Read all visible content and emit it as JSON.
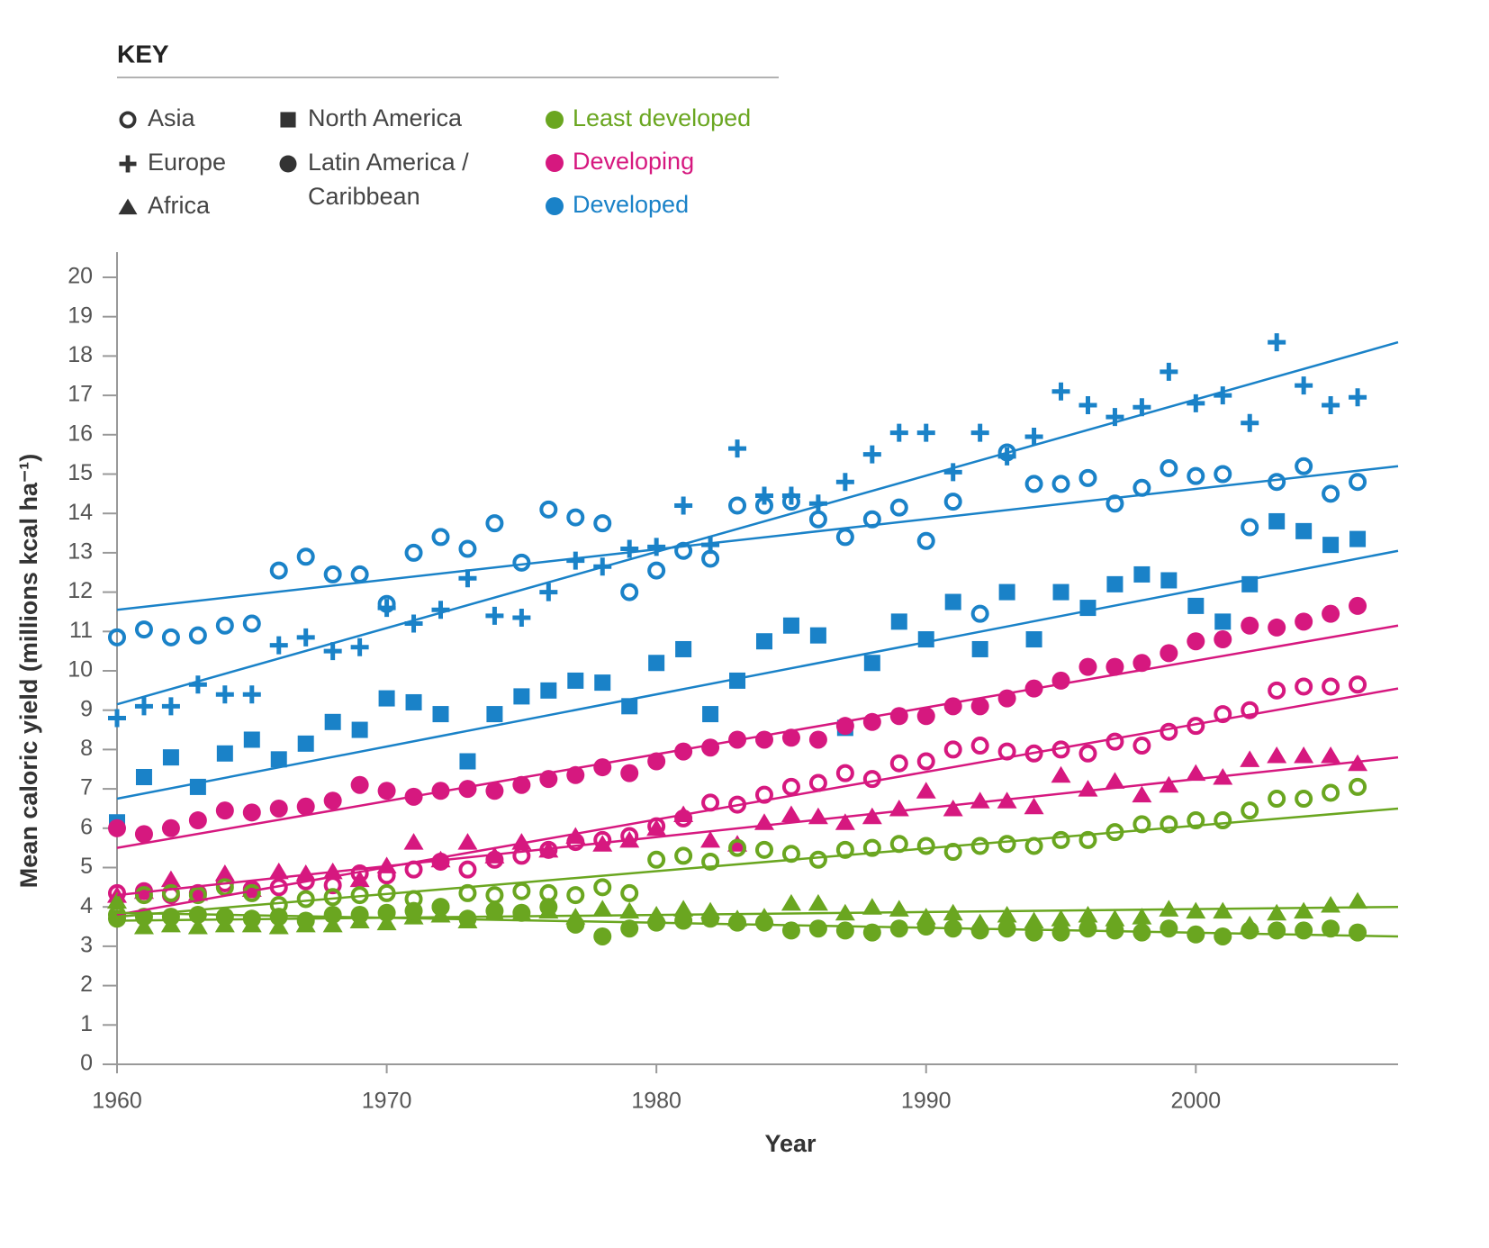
{
  "chart_data": {
    "type": "scatter",
    "legend_title": "KEY",
    "legend": {
      "shapes": [
        {
          "label": [
            "Asia"
          ],
          "marker": "circle-open"
        },
        {
          "label": [
            "Europe"
          ],
          "marker": "plus"
        },
        {
          "label": [
            "Africa"
          ],
          "marker": "triangle"
        },
        {
          "label": [
            "North America"
          ],
          "marker": "square"
        },
        {
          "label": [
            "Latin America /",
            "Caribbean"
          ],
          "marker": "circle"
        }
      ],
      "groups": [
        {
          "label": "Least developed",
          "color": "#6aa620"
        },
        {
          "label": "Developing",
          "color": "#d6187f"
        },
        {
          "label": "Developed",
          "color": "#1a82c8"
        }
      ]
    },
    "xlabel": "Year",
    "ylabel": "Mean caloric yield (millions kcal ha⁻¹)",
    "xlim": [
      1960,
      2007.5
    ],
    "ylim": [
      0,
      20
    ],
    "xticks": [
      1960,
      1970,
      1980,
      1990,
      2000
    ],
    "yticks": [
      0,
      1,
      2,
      3,
      4,
      5,
      6,
      7,
      8,
      9,
      10,
      11,
      12,
      13,
      14,
      15,
      16,
      17,
      18,
      19,
      20
    ],
    "x": [
      1960,
      1961,
      1962,
      1963,
      1964,
      1965,
      1966,
      1967,
      1968,
      1969,
      1970,
      1971,
      1972,
      1973,
      1974,
      1975,
      1976,
      1977,
      1978,
      1979,
      1980,
      1981,
      1982,
      1983,
      1984,
      1985,
      1986,
      1987,
      1988,
      1989,
      1990,
      1991,
      1992,
      1993,
      1994,
      1995,
      1996,
      1997,
      1998,
      1999,
      2000,
      2001,
      2002,
      2003,
      2004,
      2005,
      2006
    ],
    "trend_x": [
      1960,
      2007.5
    ],
    "series": [
      {
        "marker": "circle-open",
        "color": "#1a82c8",
        "trend": [
          11.55,
          15.2
        ],
        "values": [
          10.85,
          11.05,
          10.85,
          10.9,
          11.15,
          11.2,
          12.55,
          12.9,
          12.45,
          12.45,
          11.7,
          13.0,
          13.4,
          13.1,
          13.75,
          12.75,
          14.1,
          13.9,
          13.75,
          12.0,
          12.55,
          13.05,
          12.85,
          14.2,
          14.2,
          14.3,
          13.85,
          13.4,
          13.85,
          14.15,
          13.3,
          14.3,
          11.45,
          15.55,
          14.75,
          14.75,
          14.9,
          14.25,
          14.65,
          15.15,
          14.95,
          15.0,
          13.65,
          14.8,
          15.2,
          14.5,
          14.8
        ]
      },
      {
        "marker": "plus",
        "color": "#1a82c8",
        "trend": [
          9.15,
          18.35
        ],
        "values": [
          8.8,
          9.1,
          9.1,
          9.65,
          9.4,
          9.4,
          10.65,
          10.85,
          10.5,
          10.6,
          11.6,
          11.2,
          11.55,
          12.35,
          11.4,
          11.35,
          12.0,
          12.8,
          12.65,
          13.1,
          13.15,
          14.2,
          13.2,
          15.65,
          14.45,
          14.45,
          14.25,
          14.8,
          15.5,
          16.05,
          16.05,
          15.05,
          16.05,
          15.45,
          15.95,
          17.1,
          16.75,
          16.45,
          16.7,
          17.6,
          16.8,
          17.0,
          16.3,
          18.35,
          17.25,
          16.75,
          16.95
        ]
      },
      {
        "marker": "square",
        "color": "#1a82c8",
        "trend": [
          6.75,
          13.05
        ],
        "values": [
          6.15,
          7.3,
          7.8,
          7.05,
          7.9,
          8.25,
          7.75,
          8.15,
          8.7,
          8.5,
          9.3,
          9.2,
          8.9,
          7.7,
          8.9,
          9.35,
          9.5,
          9.75,
          9.7,
          9.1,
          10.2,
          10.55,
          8.9,
          9.75,
          10.75,
          11.15,
          10.9,
          8.55,
          10.2,
          11.25,
          10.8,
          11.75,
          10.55,
          12.0,
          10.8,
          12.0,
          11.6,
          12.2,
          12.45,
          12.3,
          11.65,
          11.25,
          12.2,
          13.8,
          13.55,
          13.2,
          13.35
        ]
      },
      {
        "marker": "circle",
        "color": "#d6187f",
        "trend": [
          5.5,
          11.15
        ],
        "values": [
          6.0,
          5.85,
          6.0,
          6.2,
          6.45,
          6.4,
          6.5,
          6.55,
          6.7,
          7.1,
          6.95,
          6.8,
          6.95,
          7.0,
          6.95,
          7.1,
          7.25,
          7.35,
          7.55,
          7.4,
          7.7,
          7.95,
          8.05,
          8.25,
          8.25,
          8.3,
          8.25,
          8.6,
          8.7,
          8.85,
          8.85,
          9.1,
          9.1,
          9.3,
          9.55,
          9.75,
          10.1,
          10.1,
          10.2,
          10.45,
          10.75,
          10.8,
          11.15,
          11.1,
          11.25,
          11.45,
          11.65
        ]
      },
      {
        "marker": "circle-open",
        "color": "#d6187f",
        "trend": [
          3.8,
          9.55
        ],
        "values": [
          4.35,
          4.4,
          4.3,
          4.35,
          4.6,
          4.45,
          4.5,
          4.65,
          4.55,
          4.85,
          4.8,
          4.95,
          5.15,
          4.95,
          5.2,
          5.3,
          5.45,
          5.65,
          5.7,
          5.8,
          6.05,
          6.25,
          6.65,
          6.6,
          6.85,
          7.05,
          7.15,
          7.4,
          7.25,
          7.65,
          7.7,
          8.0,
          8.1,
          7.95,
          7.9,
          8.0,
          7.9,
          8.2,
          8.1,
          8.45,
          8.6,
          8.9,
          9.0,
          9.5,
          9.6,
          9.6,
          9.65
        ]
      },
      {
        "marker": "triangle",
        "color": "#d6187f",
        "trend": [
          4.3,
          7.8
        ],
        "values": [
          4.3,
          4.4,
          4.7,
          4.35,
          4.85,
          4.45,
          4.9,
          4.85,
          4.9,
          4.7,
          5.05,
          5.65,
          5.2,
          5.65,
          5.3,
          5.65,
          5.45,
          5.8,
          5.6,
          5.7,
          6.0,
          6.35,
          5.7,
          5.6,
          6.15,
          6.35,
          6.3,
          6.15,
          6.3,
          6.5,
          6.95,
          6.5,
          6.7,
          6.7,
          6.55,
          7.35,
          7.0,
          7.2,
          6.85,
          7.1,
          7.4,
          7.3,
          7.75,
          7.85,
          7.85,
          7.85,
          7.65
        ]
      },
      {
        "marker": "circle-open",
        "color": "#6aa620",
        "trend": [
          3.75,
          6.5
        ],
        "values": [
          3.8,
          4.3,
          4.35,
          4.3,
          4.5,
          4.35,
          4.05,
          4.2,
          4.25,
          4.3,
          4.35,
          4.2,
          4.0,
          4.35,
          4.3,
          4.4,
          4.35,
          4.3,
          4.5,
          4.35,
          5.2,
          5.3,
          5.15,
          5.5,
          5.45,
          5.35,
          5.2,
          5.45,
          5.5,
          5.6,
          5.55,
          5.4,
          5.55,
          5.6,
          5.55,
          5.7,
          5.7,
          5.9,
          6.1,
          6.1,
          6.2,
          6.2,
          6.45,
          6.75,
          6.75,
          6.9,
          7.05
        ]
      },
      {
        "marker": "triangle",
        "color": "#6aa620",
        "trend": [
          3.65,
          4.0
        ],
        "values": [
          4.15,
          3.5,
          3.55,
          3.5,
          3.55,
          3.55,
          3.5,
          3.55,
          3.55,
          3.65,
          3.6,
          3.75,
          3.8,
          3.65,
          3.85,
          3.85,
          3.9,
          3.75,
          3.95,
          3.9,
          3.8,
          3.95,
          3.9,
          3.7,
          3.75,
          4.1,
          4.1,
          3.85,
          4.0,
          3.95,
          3.75,
          3.85,
          3.6,
          3.8,
          3.65,
          3.7,
          3.8,
          3.7,
          3.75,
          3.95,
          3.9,
          3.9,
          3.55,
          3.85,
          3.9,
          4.05,
          4.15
        ]
      },
      {
        "marker": "circle",
        "color": "#6aa620",
        "trend": [
          3.85,
          3.25
        ],
        "values": [
          3.7,
          3.75,
          3.75,
          3.8,
          3.75,
          3.7,
          3.75,
          3.65,
          3.8,
          3.8,
          3.85,
          3.9,
          4.0,
          3.7,
          3.9,
          3.85,
          4.0,
          3.55,
          3.25,
          3.45,
          3.6,
          3.65,
          3.7,
          3.6,
          3.6,
          3.4,
          3.45,
          3.4,
          3.35,
          3.45,
          3.5,
          3.45,
          3.4,
          3.45,
          3.35,
          3.35,
          3.45,
          3.4,
          3.35,
          3.45,
          3.3,
          3.25,
          3.4,
          3.4,
          3.4,
          3.45,
          3.35
        ]
      }
    ]
  }
}
